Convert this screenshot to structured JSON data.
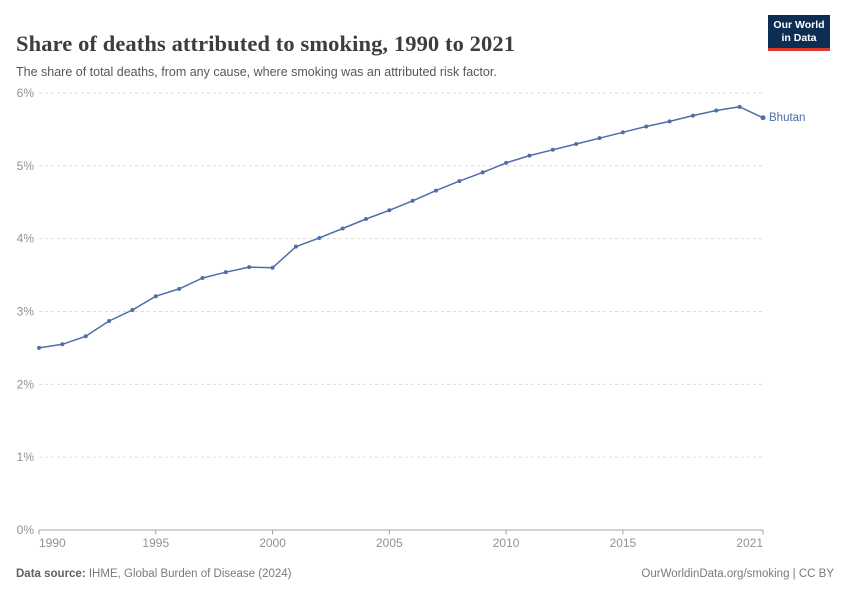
{
  "chart_data": {
    "type": "line",
    "title": "Share of deaths attributed to smoking, 1990 to 2021",
    "subtitle": "The share of total deaths, from any cause, where smoking was an attributed risk factor.",
    "x": [
      1990,
      1991,
      1992,
      1993,
      1994,
      1995,
      1996,
      1997,
      1998,
      1999,
      2000,
      2001,
      2002,
      2003,
      2004,
      2005,
      2006,
      2007,
      2008,
      2009,
      2010,
      2011,
      2012,
      2013,
      2014,
      2015,
      2016,
      2017,
      2018,
      2019,
      2020,
      2021
    ],
    "series": [
      {
        "name": "Bhutan",
        "values": [
          2.5,
          2.55,
          2.66,
          2.87,
          3.02,
          3.21,
          3.31,
          3.46,
          3.54,
          3.61,
          3.6,
          3.89,
          4.01,
          4.14,
          4.27,
          4.39,
          4.52,
          4.66,
          4.79,
          4.91,
          5.04,
          5.14,
          5.22,
          5.3,
          5.38,
          5.46,
          5.54,
          5.61,
          5.69,
          5.76,
          5.81,
          5.66
        ]
      }
    ],
    "xlabel": "",
    "ylabel": "",
    "xlim": [
      1990,
      2021
    ],
    "ylim": [
      0,
      6
    ],
    "y_tick_labels": [
      "0%",
      "1%",
      "2%",
      "3%",
      "4%",
      "5%",
      "6%"
    ],
    "x_tick_years": [
      1990,
      1995,
      2000,
      2005,
      2010,
      2015,
      2021
    ],
    "x_tick_labels": [
      "1990",
      "1995",
      "2000",
      "2005",
      "2010",
      "2015",
      "2021"
    ],
    "grid": "horizontal-dashed",
    "legend": "end-of-line-label"
  },
  "logo": {
    "line1": "Our World",
    "line2": "in Data"
  },
  "footer": {
    "source_label": "Data source:",
    "source_text": " IHME, Global Burden of Disease (2024)",
    "rights": "OurWorldinData.org/smoking | CC BY"
  },
  "colors": {
    "line": "#4d6ea6",
    "point": "#4d6ea6",
    "grid": "#dcdcdc",
    "axis": "#a5a5a5",
    "tick_text": "#929292",
    "entity_label": "#4d6ea6",
    "logo_bg": "#0d2d52",
    "logo_accent": "#dc3a2f"
  }
}
